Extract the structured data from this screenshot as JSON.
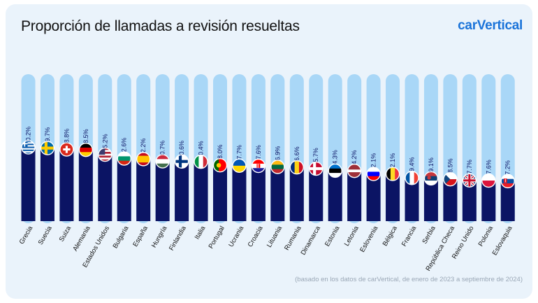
{
  "title": "Proporción de llamadas a revisión resueltas",
  "brand": "carVertical",
  "footnote": "(basado en los datos de carVertical, de enero de 2023 a septiembre de 2024)",
  "colors": {
    "bar_fill": "#0b1464",
    "bar_track": "#a9d7f7",
    "label_text": "#0b1464",
    "title": "#111111",
    "brand": "#1a73d9",
    "background": "#eaf3fb"
  },
  "chart_data": {
    "type": "bar",
    "title": "Proporción de llamadas a revisión resueltas",
    "xlabel": "",
    "ylabel": "",
    "categories": [
      "Grecia",
      "Suecia",
      "Suiza",
      "Alemania",
      "Estados Unidos",
      "Bulgaria",
      "España",
      "Hungría",
      "Finlandia",
      "Italia",
      "Portugal",
      "Ucrania",
      "Croacia",
      "Lituania",
      "Rumania",
      "Dinamarca",
      "Estonia",
      "Letonia",
      "Eslovenia",
      "Bélgica",
      "Francia",
      "Serbia",
      "República Checa",
      "Reino Unido",
      "Polonia",
      "Eslovaquia"
    ],
    "values": [
      50.2,
      49.7,
      48.8,
      48.5,
      45.2,
      42.6,
      42.2,
      40.7,
      40.6,
      40.4,
      38.0,
      37.7,
      37.6,
      36.9,
      36.6,
      35.7,
      34.3,
      34.2,
      32.1,
      32.1,
      29.4,
      29.1,
      28.5,
      27.7,
      27.6,
      27.2
    ],
    "value_labels": [
      "50.2%",
      "49.7%",
      "48.8%",
      "48.5%",
      "45.2%",
      "42.6%",
      "42.2%",
      "40.7%",
      "40.6%",
      "40.4%",
      "38.0%",
      "37.7%",
      "37.6%",
      "36.9%",
      "36.6%",
      "35.7%",
      "34.3%",
      "34.2%",
      "32.1%",
      "32.1%",
      "29.4%",
      "29.1%",
      "28.5%",
      "27.7%",
      "27.6%",
      "27.2%"
    ],
    "flags": [
      "greece-flag-icon",
      "sweden-flag-icon",
      "switzerland-flag-icon",
      "germany-flag-icon",
      "usa-flag-icon",
      "bulgaria-flag-icon",
      "spain-flag-icon",
      "hungary-flag-icon",
      "finland-flag-icon",
      "italy-flag-icon",
      "portugal-flag-icon",
      "ukraine-flag-icon",
      "croatia-flag-icon",
      "lithuania-flag-icon",
      "romania-flag-icon",
      "denmark-flag-icon",
      "estonia-flag-icon",
      "latvia-flag-icon",
      "slovenia-flag-icon",
      "belgium-flag-icon",
      "france-flag-icon",
      "serbia-flag-icon",
      "czechia-flag-icon",
      "uk-flag-icon",
      "poland-flag-icon",
      "slovakia-flag-icon"
    ],
    "ylim": [
      0,
      100
    ],
    "grid": false,
    "legend": "none"
  }
}
